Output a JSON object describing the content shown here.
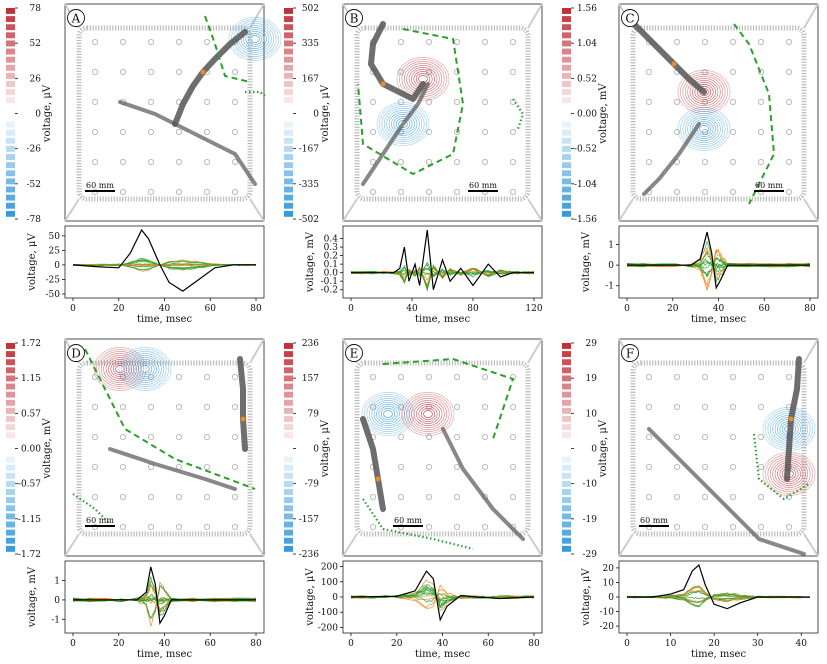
{
  "figure": {
    "scale_bar_label": "60 mm",
    "colors": {
      "positive": "#c0323a",
      "negative": "#3a9ad9",
      "fish": "#555555",
      "trace_black": "#000000",
      "trace_orange": "#f08a24",
      "trace_green": "#2ca02c"
    }
  },
  "chart_data": [
    {
      "panel": "A",
      "type": "heatmap",
      "ylabel": "voltage, μV",
      "colorbar_ticks": [
        "78",
        "52",
        "26",
        "0",
        "-26",
        "-52",
        "-78"
      ],
      "contour_sign_order": [
        "negative"
      ],
      "trace": {
        "type": "line",
        "xlabel": "time, msec",
        "ylabel": "voltage, μV",
        "xticks": [
          "0",
          "20",
          "40",
          "60",
          "80"
        ],
        "yticks": [
          "50",
          "25",
          "0",
          "-25",
          "-50"
        ],
        "xlim": [
          0,
          80
        ],
        "ylim": [
          -50,
          60
        ],
        "black_points": [
          [
            0,
            0
          ],
          [
            10,
            -3
          ],
          [
            20,
            -5
          ],
          [
            25,
            20
          ],
          [
            30,
            60
          ],
          [
            33,
            45
          ],
          [
            38,
            0
          ],
          [
            42,
            -30
          ],
          [
            48,
            -45
          ],
          [
            55,
            -25
          ],
          [
            62,
            -5
          ],
          [
            70,
            0
          ],
          [
            80,
            0
          ]
        ],
        "black_peak": 60,
        "black_trough": -45,
        "colored_band": 12
      }
    },
    {
      "panel": "B",
      "type": "heatmap",
      "ylabel": "voltage, μV",
      "colorbar_ticks": [
        "502",
        "335",
        "167",
        "0",
        "-167",
        "-335",
        "-502"
      ],
      "contour_sign_order": [
        "positive",
        "negative"
      ],
      "trace": {
        "type": "line",
        "xlabel": "time, msec",
        "ylabel": "voltage, mV",
        "xticks": [
          "0",
          "40",
          "80",
          "120"
        ],
        "yticks": [
          "0.4",
          "0.3",
          "0.2",
          "0.1",
          "0.0",
          "-0.1",
          "-0.2"
        ],
        "xlim": [
          0,
          120
        ],
        "ylim": [
          -0.25,
          0.5
        ],
        "black_points": [
          [
            0,
            0
          ],
          [
            28,
            0
          ],
          [
            32,
            0.05
          ],
          [
            35,
            0.3
          ],
          [
            38,
            -0.1
          ],
          [
            42,
            0.1
          ],
          [
            45,
            -0.15
          ],
          [
            50,
            0.5
          ],
          [
            54,
            -0.2
          ],
          [
            60,
            0.15
          ],
          [
            65,
            -0.1
          ],
          [
            72,
            0.05
          ],
          [
            80,
            -0.15
          ],
          [
            90,
            0.1
          ],
          [
            98,
            -0.05
          ],
          [
            106,
            0
          ],
          [
            120,
            0
          ]
        ],
        "black_peak": 0.5,
        "black_trough": -0.2,
        "colored_band": 0.2
      }
    },
    {
      "panel": "C",
      "type": "heatmap",
      "ylabel": "voltage, mV",
      "colorbar_ticks": [
        "1.56",
        "1.04",
        "0.52",
        "0.00",
        "-0.52",
        "-1.04",
        "-1.56"
      ],
      "contour_sign_order": [
        "positive",
        "negative"
      ],
      "trace": {
        "type": "line",
        "xlabel": "time, msec",
        "ylabel": "voltage, mV",
        "xticks": [
          "0",
          "20",
          "40",
          "60",
          "80"
        ],
        "yticks": [
          "1",
          "0",
          "-1"
        ],
        "xlim": [
          0,
          80
        ],
        "ylim": [
          -1.4,
          1.7
        ],
        "black_points": [
          [
            0,
            0
          ],
          [
            28,
            0
          ],
          [
            32,
            0.3
          ],
          [
            35,
            1.6
          ],
          [
            37,
            0.6
          ],
          [
            39,
            -1.1
          ],
          [
            41,
            -0.7
          ],
          [
            44,
            0
          ],
          [
            80,
            0
          ]
        ],
        "black_peak": 1.6,
        "black_trough": -1.1,
        "colored_band": 1.2
      }
    },
    {
      "panel": "D",
      "type": "heatmap",
      "ylabel": "voltage, mV",
      "colorbar_ticks": [
        "1.72",
        "1.15",
        "0.57",
        "0.00",
        "-0.57",
        "-1.15",
        "-1.72"
      ],
      "contour_sign_order": [
        "positive",
        "negative"
      ],
      "trace": {
        "type": "line",
        "xlabel": "time, msec",
        "ylabel": "voltage, mV",
        "xticks": [
          "0",
          "20",
          "40",
          "60",
          "80"
        ],
        "yticks": [
          "1",
          "0",
          "-1"
        ],
        "xlim": [
          0,
          80
        ],
        "ylim": [
          -1.5,
          1.8
        ],
        "black_points": [
          [
            0,
            0
          ],
          [
            28,
            0
          ],
          [
            32,
            0.4
          ],
          [
            34,
            1.7
          ],
          [
            36,
            0.8
          ],
          [
            38,
            -1.2
          ],
          [
            40,
            -0.8
          ],
          [
            43,
            0
          ],
          [
            80,
            0
          ]
        ],
        "black_peak": 1.7,
        "black_trough": -1.2,
        "colored_band": 1.3
      }
    },
    {
      "panel": "E",
      "type": "heatmap",
      "ylabel": "voltage, μV",
      "colorbar_ticks": [
        "236",
        "157",
        "79",
        "0",
        "-79",
        "-157",
        "-236"
      ],
      "contour_sign_order": [
        "negative",
        "positive"
      ],
      "trace": {
        "type": "line",
        "xlabel": "time, msec",
        "ylabel": "voltage, μV",
        "xticks": [
          "0",
          "20",
          "40",
          "60",
          "80"
        ],
        "yticks": [
          "200",
          "100",
          "0",
          "-100",
          "-200"
        ],
        "xlim": [
          0,
          80
        ],
        "ylim": [
          -210,
          210
        ],
        "black_points": [
          [
            0,
            0
          ],
          [
            20,
            5
          ],
          [
            28,
            40
          ],
          [
            33,
            170
          ],
          [
            36,
            120
          ],
          [
            39,
            -150
          ],
          [
            42,
            -60
          ],
          [
            48,
            10
          ],
          [
            55,
            0
          ],
          [
            65,
            -10
          ],
          [
            80,
            0
          ]
        ],
        "black_peak": 170,
        "black_trough": -150,
        "colored_band": 110
      }
    },
    {
      "panel": "F",
      "type": "heatmap",
      "ylabel": "voltage, μV",
      "colorbar_ticks": [
        "29",
        "19",
        "10",
        "0",
        "-10",
        "-19",
        "-29"
      ],
      "contour_sign_order": [
        "negative",
        "positive"
      ],
      "trace": {
        "type": "line",
        "xlabel": "time, msec",
        "ylabel": "voltage, μV",
        "xticks": [
          "0",
          "10",
          "20",
          "30",
          "40"
        ],
        "yticks": [
          "20",
          "10",
          "0",
          "-10",
          "-20"
        ],
        "xlim": [
          0,
          42
        ],
        "ylim": [
          -22,
          22
        ],
        "black_points": [
          [
            0,
            0
          ],
          [
            6,
            0
          ],
          [
            10,
            2
          ],
          [
            13,
            5
          ],
          [
            15,
            18
          ],
          [
            16.5,
            22
          ],
          [
            18,
            8
          ],
          [
            20,
            -5
          ],
          [
            23,
            -8
          ],
          [
            26,
            -4
          ],
          [
            30,
            0
          ],
          [
            42,
            0
          ]
        ],
        "black_peak": 22,
        "black_trough": -8,
        "colored_band": 8
      }
    }
  ]
}
